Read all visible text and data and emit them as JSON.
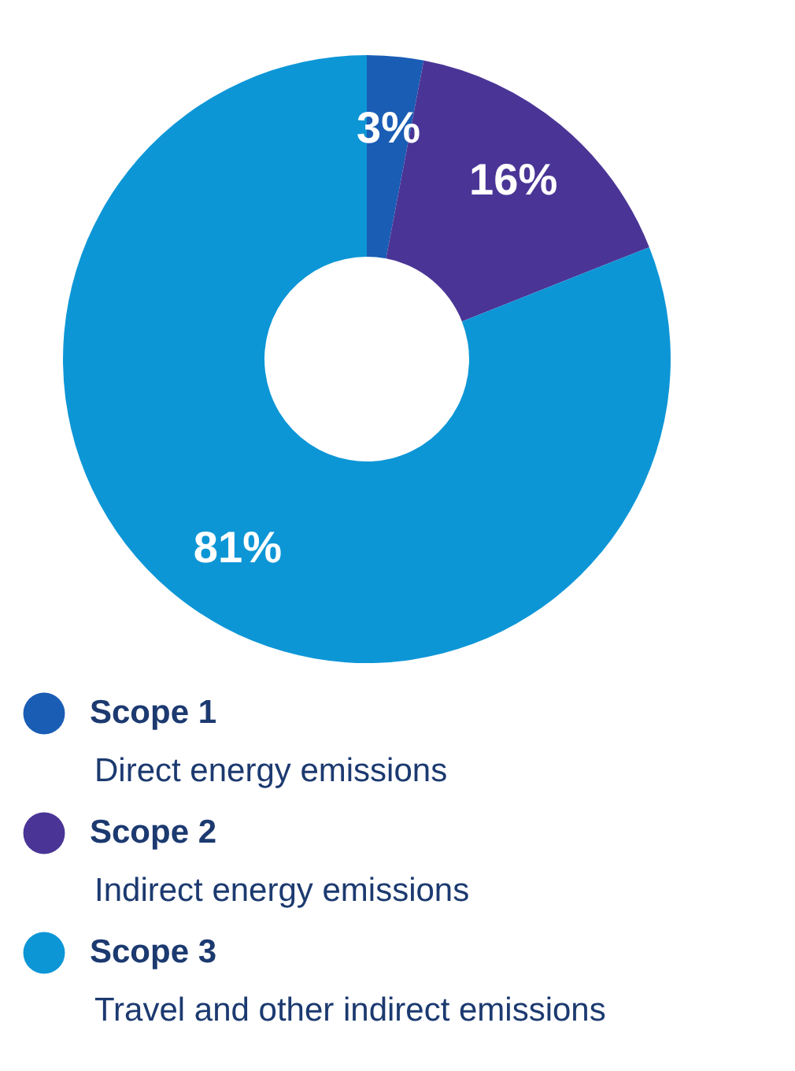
{
  "chart_data": {
    "type": "donut",
    "categories": [
      "Scope 1",
      "Scope 2",
      "Scope 3"
    ],
    "values": [
      3,
      16,
      81
    ],
    "colors": [
      "#1a5db5",
      "#4a3596",
      "#0d96d6"
    ],
    "value_labels": [
      "3%",
      "16%",
      "81%"
    ],
    "annotations": [
      "Direct energy emissions",
      "Indirect energy emissions",
      "Travel and other indirect emissions"
    ],
    "legend": "bottom"
  }
}
